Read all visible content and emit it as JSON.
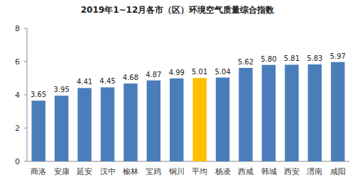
{
  "chart_data": {
    "type": "bar",
    "title": "2019年1~12月各市（区）环境空气质量综合指数",
    "categories": [
      "商洛",
      "安康",
      "延安",
      "汉中",
      "榆林",
      "宝鸡",
      "铜川",
      "平均",
      "杨凌",
      "西咸",
      "韩城",
      "西安",
      "渭南",
      "咸阳"
    ],
    "values": [
      3.65,
      3.95,
      4.41,
      4.45,
      4.68,
      4.87,
      4.99,
      5.01,
      5.04,
      5.62,
      5.8,
      5.81,
      5.83,
      5.97
    ],
    "value_labels": [
      "3.65",
      "3.95",
      "4.41",
      "4.45",
      "4.68",
      "4.87",
      "4.99",
      "5.01",
      "5.04",
      "5.62",
      "5.80",
      "5.81",
      "5.83",
      "5.97"
    ],
    "colors": [
      "#4a7ebb",
      "#4a7ebb",
      "#4a7ebb",
      "#4a7ebb",
      "#4a7ebb",
      "#4a7ebb",
      "#4a7ebb",
      "#ffc000",
      "#4a7ebb",
      "#4a7ebb",
      "#4a7ebb",
      "#4a7ebb",
      "#4a7ebb",
      "#4a7ebb"
    ],
    "ylim": [
      0,
      8
    ],
    "yticks": [
      0,
      2,
      4,
      6,
      8
    ],
    "grid": false,
    "data_labels": true
  }
}
